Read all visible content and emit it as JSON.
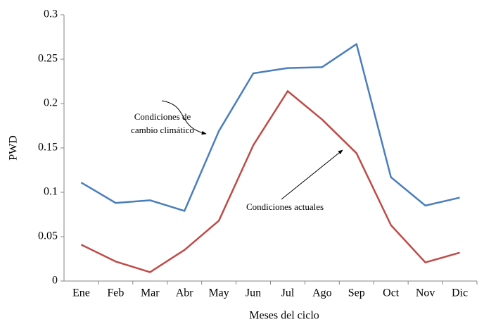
{
  "chart_data": {
    "type": "line",
    "categories": [
      "Ene",
      "Feb",
      "Mar",
      "Abr",
      "May",
      "Jun",
      "Jul",
      "Ago",
      "Sep",
      "Oct",
      "Nov",
      "Dic"
    ],
    "series": [
      {
        "color": "#4a7ebb",
        "values": [
          0.111,
          0.088,
          0.091,
          0.079,
          0.169,
          0.234,
          0.24,
          0.241,
          0.267,
          0.117,
          0.085,
          0.094
        ]
      },
      {
        "color": "#be4b48",
        "values": [
          0.041,
          0.022,
          0.01,
          0.035,
          0.068,
          0.153,
          0.214,
          0.182,
          0.144,
          0.063,
          0.021,
          0.032
        ]
      }
    ],
    "ylim": [
      0,
      0.3
    ],
    "yticks": [
      0,
      0.05,
      0.1,
      0.15,
      0.2,
      0.25,
      0.3
    ],
    "xlabel": "Meses del ciclo",
    "ylabel": "PWD",
    "annotations": [
      {
        "text": [
          "Condiciones de",
          "cambio climático"
        ]
      },
      {
        "text": [
          "Condiciones actuales"
        ]
      }
    ]
  }
}
